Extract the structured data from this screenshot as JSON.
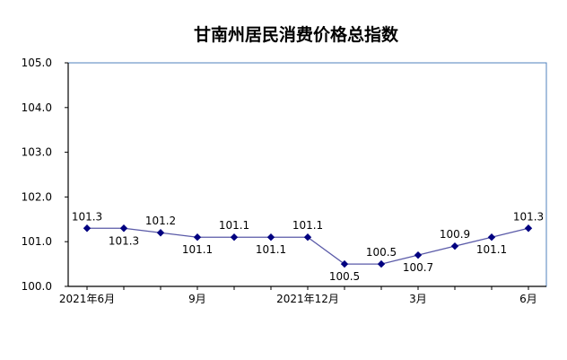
{
  "chart_data": {
    "type": "line",
    "title": "甘南州居民消费价格总指数",
    "xlabel": "",
    "ylabel": "",
    "categories": [
      "2021年6月",
      "",
      "",
      "9月",
      "",
      "",
      "2021年12月",
      "",
      "",
      "3月",
      "",
      "",
      "6月"
    ],
    "series": [
      {
        "values": [
          101.3,
          101.3,
          101.2,
          101.1,
          101.1,
          101.1,
          101.1,
          100.5,
          100.5,
          100.7,
          100.9,
          101.1,
          101.3
        ]
      }
    ],
    "data_labels": [
      "101.3",
      "101.3",
      "101.2",
      "101.1",
      "101.1",
      "101.1",
      "101.1",
      "100.5",
      "100.5",
      "100.7",
      "100.9",
      "101.1",
      "101.3"
    ],
    "y_ticks": [
      "100.0",
      "101.0",
      "102.0",
      "103.0",
      "104.0",
      "105.0"
    ],
    "ylim": [
      100,
      105
    ],
    "grid": false,
    "legend": "none",
    "colors": {
      "line": "#5a5aa8",
      "marker": "#000080",
      "axis": "#000000",
      "plot_border": "#4f81bd"
    }
  }
}
